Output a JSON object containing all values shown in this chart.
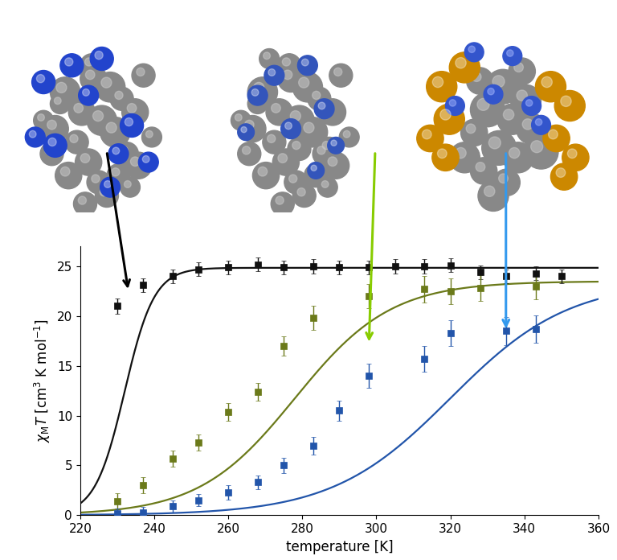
{
  "xlim": [
    220,
    360
  ],
  "ylim": [
    0,
    27
  ],
  "xlabel": "temperature [K]",
  "ylabel": "$\\chi_{\\mathrm{M}}T$ [cm$^3$ K mol$^{-1}$]",
  "yticks": [
    0,
    5,
    10,
    15,
    20,
    25
  ],
  "xticks": [
    220,
    240,
    260,
    280,
    300,
    320,
    340,
    360
  ],
  "black_x": [
    230,
    237,
    245,
    252,
    260,
    268,
    275,
    283,
    290,
    298,
    305,
    313,
    320,
    328,
    335,
    343,
    350
  ],
  "black_y": [
    21.0,
    23.1,
    24.0,
    24.7,
    24.9,
    25.2,
    24.9,
    25.0,
    24.9,
    24.9,
    25.0,
    25.0,
    25.1,
    24.4,
    24.0,
    24.3,
    24.0
  ],
  "black_yerr": [
    0.8,
    0.7,
    0.7,
    0.7,
    0.7,
    0.7,
    0.7,
    0.7,
    0.7,
    0.7,
    0.7,
    0.7,
    0.7,
    0.7,
    0.7,
    0.7,
    0.7
  ],
  "green_x": [
    230,
    237,
    245,
    252,
    260,
    268,
    275,
    283,
    298,
    313,
    320,
    328,
    343
  ],
  "green_y": [
    1.4,
    3.0,
    5.7,
    7.3,
    10.4,
    12.4,
    17.0,
    19.8,
    22.0,
    22.7,
    22.5,
    22.8,
    23.0
  ],
  "green_yerr": [
    0.8,
    0.8,
    0.8,
    0.8,
    0.9,
    0.9,
    1.0,
    1.2,
    1.2,
    1.3,
    1.3,
    1.3,
    1.3
  ],
  "blue_x": [
    230,
    237,
    245,
    252,
    260,
    268,
    275,
    283,
    290,
    298,
    313,
    320,
    335,
    343
  ],
  "blue_y": [
    0.15,
    0.3,
    0.9,
    1.5,
    2.3,
    3.3,
    5.0,
    7.0,
    10.5,
    14.0,
    15.7,
    18.3,
    18.5,
    18.7
  ],
  "blue_yerr": [
    0.5,
    0.5,
    0.6,
    0.6,
    0.7,
    0.7,
    0.8,
    0.9,
    1.0,
    1.2,
    1.3,
    1.3,
    1.4,
    1.4
  ],
  "black_color": "#111111",
  "green_color": "#6b7a1a",
  "blue_color": "#2255aa",
  "green_arrow_color": "#88cc00",
  "blue_arrow_color": "#3399ee",
  "black_fit_T0": 232,
  "black_fit_scale": 4,
  "black_fit_plateau": 24.85,
  "green_fit_T0": 278,
  "green_fit_scale": 13,
  "green_fit_plateau": 23.5,
  "blue_fit_T0": 320,
  "blue_fit_scale": 16,
  "blue_fit_plateau": 23.5,
  "figure_bg": "#ffffff",
  "plot_bg": "#ffffff",
  "mol1_grey_x": [
    0.28,
    0.45,
    0.55,
    0.38,
    0.62,
    0.22,
    0.5,
    0.7,
    0.35,
    0.58,
    0.42,
    0.65,
    0.3,
    0.48,
    0.72,
    0.2,
    0.53,
    0.67,
    0.4,
    0.25,
    0.6,
    0.8,
    0.15,
    0.44,
    0.75
  ],
  "mol1_grey_y": [
    0.72,
    0.8,
    0.75,
    0.6,
    0.68,
    0.5,
    0.55,
    0.6,
    0.42,
    0.48,
    0.3,
    0.35,
    0.22,
    0.18,
    0.28,
    0.35,
    0.1,
    0.15,
    0.05,
    0.65,
    0.22,
    0.45,
    0.55,
    0.88,
    0.82
  ],
  "mol1_grey_r": [
    0.09,
    0.08,
    0.09,
    0.08,
    0.07,
    0.08,
    0.09,
    0.08,
    0.07,
    0.09,
    0.08,
    0.07,
    0.08,
    0.07,
    0.08,
    0.07,
    0.07,
    0.06,
    0.07,
    0.06,
    0.07,
    0.06,
    0.06,
    0.07,
    0.07
  ],
  "mol1_blue_x": [
    0.15,
    0.5,
    0.68,
    0.32,
    0.22,
    0.78,
    0.42,
    0.6,
    0.1,
    0.55
  ],
  "mol1_blue_y": [
    0.78,
    0.92,
    0.52,
    0.88,
    0.4,
    0.3,
    0.7,
    0.35,
    0.45,
    0.15
  ],
  "mol1_blue_r": [
    0.07,
    0.07,
    0.07,
    0.07,
    0.07,
    0.06,
    0.06,
    0.06,
    0.06,
    0.06
  ],
  "mol2_grey_x": [
    0.28,
    0.45,
    0.55,
    0.38,
    0.62,
    0.22,
    0.5,
    0.7,
    0.35,
    0.58,
    0.42,
    0.65,
    0.3,
    0.48,
    0.72,
    0.2,
    0.53,
    0.67,
    0.4,
    0.25,
    0.6,
    0.8,
    0.15,
    0.44,
    0.75,
    0.32,
    0.68,
    0.5
  ],
  "mol2_grey_y": [
    0.72,
    0.8,
    0.75,
    0.6,
    0.68,
    0.5,
    0.55,
    0.6,
    0.42,
    0.48,
    0.3,
    0.35,
    0.22,
    0.18,
    0.28,
    0.35,
    0.1,
    0.15,
    0.05,
    0.65,
    0.22,
    0.45,
    0.55,
    0.88,
    0.82,
    0.92,
    0.38,
    0.38
  ],
  "mol2_grey_r": [
    0.09,
    0.08,
    0.09,
    0.08,
    0.07,
    0.08,
    0.09,
    0.08,
    0.07,
    0.09,
    0.08,
    0.07,
    0.08,
    0.07,
    0.08,
    0.07,
    0.07,
    0.06,
    0.07,
    0.06,
    0.07,
    0.06,
    0.06,
    0.07,
    0.07,
    0.06,
    0.07,
    0.07
  ],
  "mol2_blue_x": [
    0.35,
    0.55,
    0.65,
    0.25,
    0.45,
    0.72,
    0.18,
    0.6
  ],
  "mol2_blue_y": [
    0.82,
    0.88,
    0.62,
    0.7,
    0.5,
    0.4,
    0.48,
    0.25
  ],
  "mol2_blue_r": [
    0.06,
    0.06,
    0.06,
    0.06,
    0.06,
    0.05,
    0.05,
    0.05
  ],
  "mol3_grey_x": [
    0.5,
    0.62,
    0.42,
    0.55,
    0.35,
    0.65,
    0.48,
    0.58,
    0.4,
    0.7,
    0.3,
    0.52,
    0.45,
    0.38,
    0.6
  ],
  "mol3_grey_y": [
    0.72,
    0.65,
    0.6,
    0.55,
    0.48,
    0.5,
    0.4,
    0.35,
    0.28,
    0.38,
    0.35,
    0.22,
    0.15,
    0.75,
    0.8
  ],
  "mol3_grey_r": [
    0.09,
    0.08,
    0.09,
    0.08,
    0.07,
    0.08,
    0.09,
    0.08,
    0.07,
    0.09,
    0.08,
    0.07,
    0.08,
    0.07,
    0.07
  ],
  "mol3_orange_x": [
    0.18,
    0.3,
    0.22,
    0.12,
    0.75,
    0.85,
    0.78,
    0.88,
    0.2,
    0.82
  ],
  "mol3_orange_y": [
    0.72,
    0.82,
    0.55,
    0.45,
    0.72,
    0.62,
    0.45,
    0.35,
    0.35,
    0.25
  ],
  "mol3_orange_r": [
    0.08,
    0.08,
    0.08,
    0.07,
    0.08,
    0.08,
    0.07,
    0.07,
    0.07,
    0.07
  ],
  "mol3_blue_x": [
    0.35,
    0.55,
    0.45,
    0.65,
    0.25,
    0.7
  ],
  "mol3_blue_y": [
    0.9,
    0.88,
    0.68,
    0.62,
    0.62,
    0.52
  ],
  "mol3_blue_r": [
    0.05,
    0.05,
    0.05,
    0.05,
    0.05,
    0.05
  ]
}
